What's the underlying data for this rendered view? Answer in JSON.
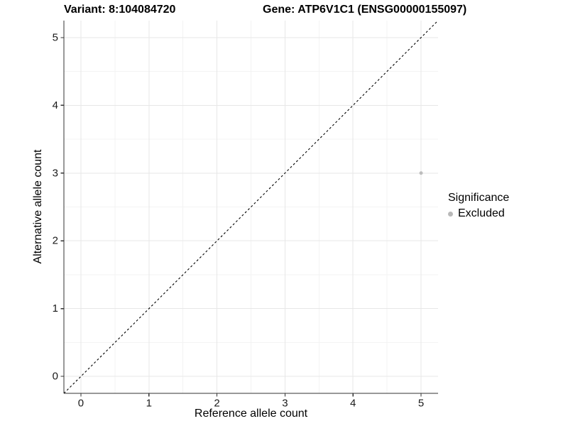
{
  "titles": {
    "variant": "Variant: 8:104084720",
    "gene": "Gene: ATP6V1C1 (ENSG00000155097)"
  },
  "chart_data": {
    "type": "scatter",
    "xlabel": "Reference allele count",
    "ylabel": "Alternative allele count",
    "xlim": [
      -0.25,
      5.25
    ],
    "ylim": [
      -0.25,
      5.25
    ],
    "x_ticks": [
      0,
      1,
      2,
      3,
      4,
      5
    ],
    "y_ticks": [
      0,
      1,
      2,
      3,
      4,
      5
    ],
    "x_minor": [
      0.5,
      1.5,
      2.5,
      3.5,
      4.5
    ],
    "y_minor": [
      0.5,
      1.5,
      2.5,
      3.5,
      4.5
    ],
    "grid": true,
    "identity_line": {
      "style": "dashed",
      "from": [
        -0.25,
        -0.25
      ],
      "to": [
        5.25,
        5.25
      ]
    },
    "points": [
      {
        "x": 5,
        "y": 3,
        "series": "Excluded"
      }
    ],
    "legend": {
      "title": "Significance",
      "position": "right",
      "items": [
        {
          "label": "Excluded",
          "color": "#b9b9b9"
        }
      ]
    },
    "colors": {
      "point": "#bdbdbd",
      "grid_major": "#e7e7e7",
      "grid_minor": "#f3f3f3",
      "axis_line": "#333333",
      "tick": "#333333",
      "tick_label": "#1a1a1a",
      "identity_line": "#000000",
      "background": "#ffffff"
    }
  }
}
